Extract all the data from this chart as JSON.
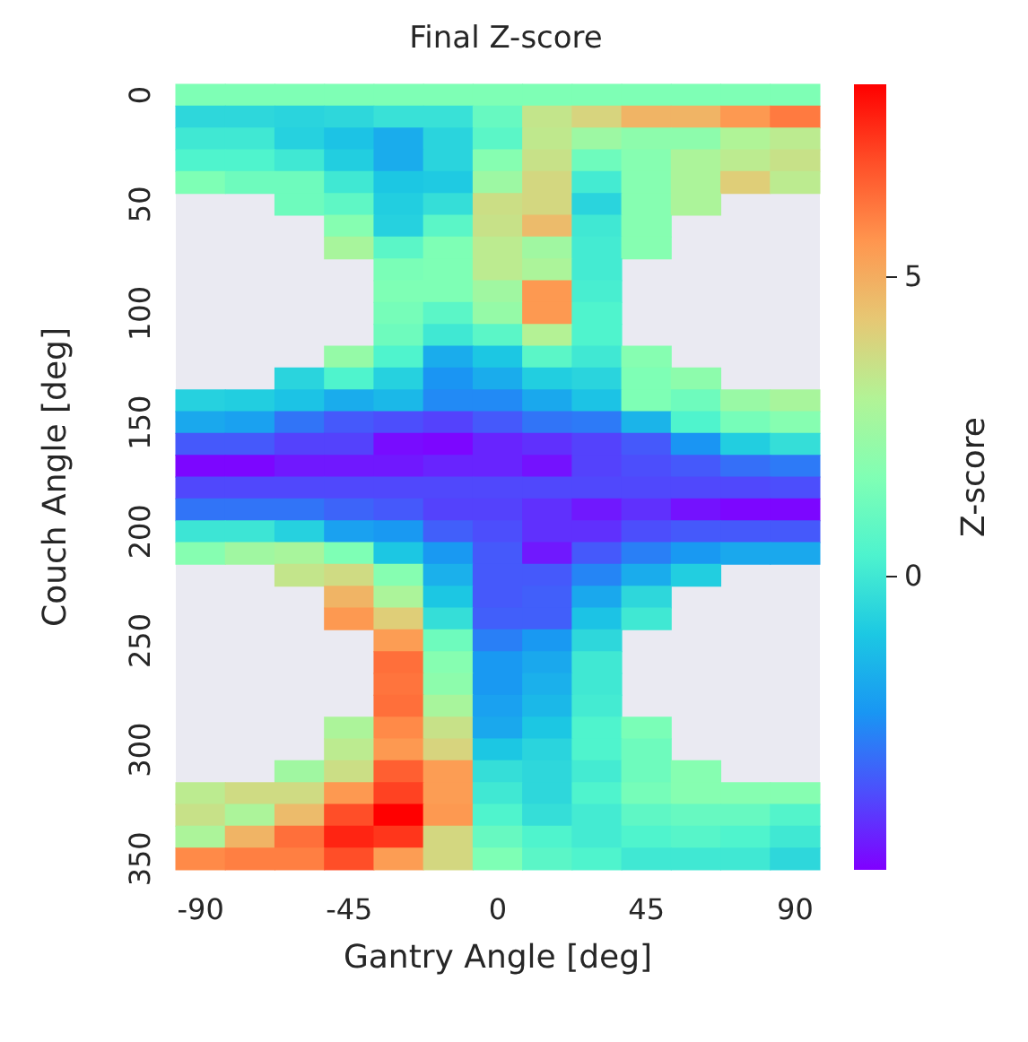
{
  "chart_data": {
    "type": "heatmap",
    "title": "Final Z-score",
    "xlabel": "Gantry Angle [deg]",
    "ylabel": "Couch Angle [deg]",
    "clabel": "Z-score",
    "categories": [
      "-90",
      null,
      null,
      "-45",
      null,
      null,
      "0",
      null,
      null,
      "45",
      null,
      null,
      "90"
    ],
    "y_categories": [
      "0",
      null,
      null,
      null,
      null,
      "50",
      null,
      null,
      null,
      null,
      "100",
      null,
      null,
      null,
      null,
      "150",
      null,
      null,
      null,
      null,
      "200",
      null,
      null,
      null,
      null,
      "250",
      null,
      null,
      null,
      null,
      "300",
      null,
      null,
      null,
      null,
      "350"
    ],
    "clim": [
      -4.9,
      8.2
    ],
    "cticks": [
      0,
      5
    ],
    "cells": [
      [
        1.6,
        1.6,
        1.6,
        1.6,
        1.6,
        1.6,
        1.6,
        1.6,
        1.6,
        1.6,
        1.6,
        1.6,
        1.6
      ],
      [
        -0.5,
        -0.5,
        -0.6,
        -0.5,
        -0.2,
        -0.2,
        1.0,
        3.4,
        3.9,
        4.8,
        4.8,
        5.5,
        6.1
      ],
      [
        0,
        0,
        -0.7,
        -1.1,
        -1.7,
        -0.6,
        0.7,
        3.3,
        2.4,
        2.0,
        2.0,
        2.9,
        3.2
      ],
      [
        0.4,
        0.4,
        0,
        -0.8,
        -1.7,
        -0.6,
        1.8,
        3.5,
        1.2,
        1.8,
        2.8,
        3.2,
        3.5
      ],
      [
        1.6,
        1.2,
        1.2,
        0,
        -1.0,
        -0.9,
        2.4,
        3.8,
        0.1,
        1.8,
        2.8,
        4.1,
        3.2
      ],
      [
        null,
        null,
        1.2,
        0.8,
        -0.8,
        -0.3,
        3.6,
        3.8,
        -0.6,
        1.8,
        2.8,
        null,
        null
      ],
      [
        null,
        null,
        null,
        1.8,
        -0.7,
        0.7,
        3.5,
        4.6,
        0,
        1.8,
        null,
        null,
        null
      ],
      [
        null,
        null,
        null,
        2.7,
        0.7,
        1.6,
        3.2,
        2.5,
        0.1,
        1.8,
        null,
        null,
        null
      ],
      [
        null,
        null,
        null,
        null,
        1.5,
        1.6,
        3.2,
        2.8,
        0.1,
        null,
        null,
        null,
        null
      ],
      [
        null,
        null,
        null,
        null,
        1.6,
        1.6,
        2.5,
        5.5,
        0.2,
        null,
        null,
        null,
        null
      ],
      [
        null,
        null,
        null,
        null,
        1.4,
        0.7,
        2.2,
        5.5,
        0.4,
        null,
        null,
        null,
        null
      ],
      [
        null,
        null,
        null,
        null,
        1.2,
        0,
        0.7,
        3.0,
        0.4,
        null,
        null,
        null,
        null
      ],
      [
        null,
        null,
        null,
        2.2,
        0.4,
        -1.7,
        -1.0,
        0.7,
        0,
        1.8,
        null,
        null,
        null
      ],
      [
        null,
        null,
        -0.6,
        0.4,
        -0.7,
        -2.3,
        -1.7,
        -0.8,
        -0.6,
        1.6,
        2.0,
        null,
        null
      ],
      [
        -0.7,
        -0.8,
        -1.1,
        -1.7,
        -1.4,
        -2.5,
        -2.5,
        -1.8,
        -1.1,
        1.6,
        1.2,
        2.3,
        2.7
      ],
      [
        -1.8,
        -2.0,
        -2.9,
        -3.4,
        -3.6,
        -3.8,
        -3.4,
        -2.9,
        -2.8,
        -1.5,
        0.4,
        1.4,
        1.8
      ],
      [
        -3.4,
        -3.4,
        -3.8,
        -3.8,
        -4.7,
        -4.8,
        -4.3,
        -4.1,
        -3.8,
        -3.4,
        -2.3,
        -0.8,
        -0.3
      ],
      [
        -4.8,
        -4.8,
        -4.5,
        -4.5,
        -4.5,
        -4.3,
        -4.3,
        -4.6,
        -3.8,
        -3.6,
        -3.4,
        -3.0,
        -2.8
      ],
      [
        -3.7,
        -3.7,
        -3.7,
        -3.7,
        -3.7,
        -3.7,
        -3.7,
        -3.7,
        -3.7,
        -3.7,
        -3.7,
        -3.7,
        -3.6
      ],
      [
        -2.9,
        -2.9,
        -2.9,
        -3.2,
        -3.4,
        -3.8,
        -3.8,
        -4.1,
        -4.5,
        -4.1,
        -4.6,
        -4.8,
        -4.8
      ],
      [
        -0.1,
        -0.1,
        -0.7,
        -2.0,
        -2.2,
        -3.3,
        -3.6,
        -4.1,
        -4.1,
        -3.6,
        -3.4,
        -3.4,
        -3.4
      ],
      [
        1.8,
        2.5,
        2.7,
        1.6,
        -1.0,
        -2.2,
        -3.4,
        -4.5,
        -3.4,
        -2.7,
        -2.2,
        -1.8,
        -1.8
      ],
      [
        null,
        null,
        3.4,
        3.7,
        1.8,
        -1.6,
        -3.4,
        -3.4,
        -2.6,
        -1.7,
        -0.8,
        null,
        null
      ],
      [
        null,
        null,
        null,
        4.8,
        2.8,
        -1.0,
        -3.4,
        -3.3,
        -1.8,
        -0.5,
        null,
        null,
        null
      ],
      [
        null,
        null,
        null,
        5.5,
        4.1,
        -0.3,
        -3.3,
        -3.3,
        -1.1,
        0,
        null,
        null,
        null
      ],
      [
        null,
        null,
        null,
        null,
        5.4,
        1.2,
        -2.7,
        -2.2,
        -0.5,
        null,
        null,
        null,
        null
      ],
      [
        null,
        null,
        null,
        null,
        6.3,
        1.8,
        -2.2,
        -1.8,
        0,
        null,
        null,
        null,
        null
      ],
      [
        null,
        null,
        null,
        null,
        6.2,
        2.0,
        -2.2,
        -1.6,
        0,
        null,
        null,
        null,
        null
      ],
      [
        null,
        null,
        null,
        null,
        6.3,
        2.7,
        -2.0,
        -1.4,
        0.1,
        null,
        null,
        null,
        null
      ],
      [
        null,
        null,
        null,
        2.8,
        5.8,
        3.5,
        -1.8,
        -1.0,
        0.4,
        1.5,
        null,
        null,
        null
      ],
      [
        null,
        null,
        null,
        3.2,
        5.5,
        3.9,
        -1.0,
        -0.6,
        0.4,
        1.2,
        null,
        null,
        null
      ],
      [
        null,
        null,
        2.5,
        3.6,
        6.6,
        5.4,
        -0.3,
        -0.5,
        0.1,
        1.2,
        1.8,
        null,
        null
      ],
      [
        3.2,
        3.7,
        3.7,
        5.5,
        7.1,
        5.4,
        0,
        -0.5,
        0.4,
        1.4,
        1.8,
        1.8,
        1.8
      ],
      [
        3.5,
        2.8,
        4.6,
        6.9,
        8.2,
        5.5,
        0.4,
        -0.3,
        0.1,
        0.8,
        1.0,
        1.0,
        0.5
      ],
      [
        2.8,
        4.8,
        6.3,
        7.6,
        7.3,
        3.8,
        1.0,
        0.4,
        0.1,
        0.4,
        0.6,
        0.4,
        0
      ],
      [
        5.8,
        6.0,
        6.0,
        6.9,
        5.4,
        3.8,
        1.6,
        0.7,
        0.4,
        0,
        0,
        0,
        -0.5
      ]
    ]
  }
}
